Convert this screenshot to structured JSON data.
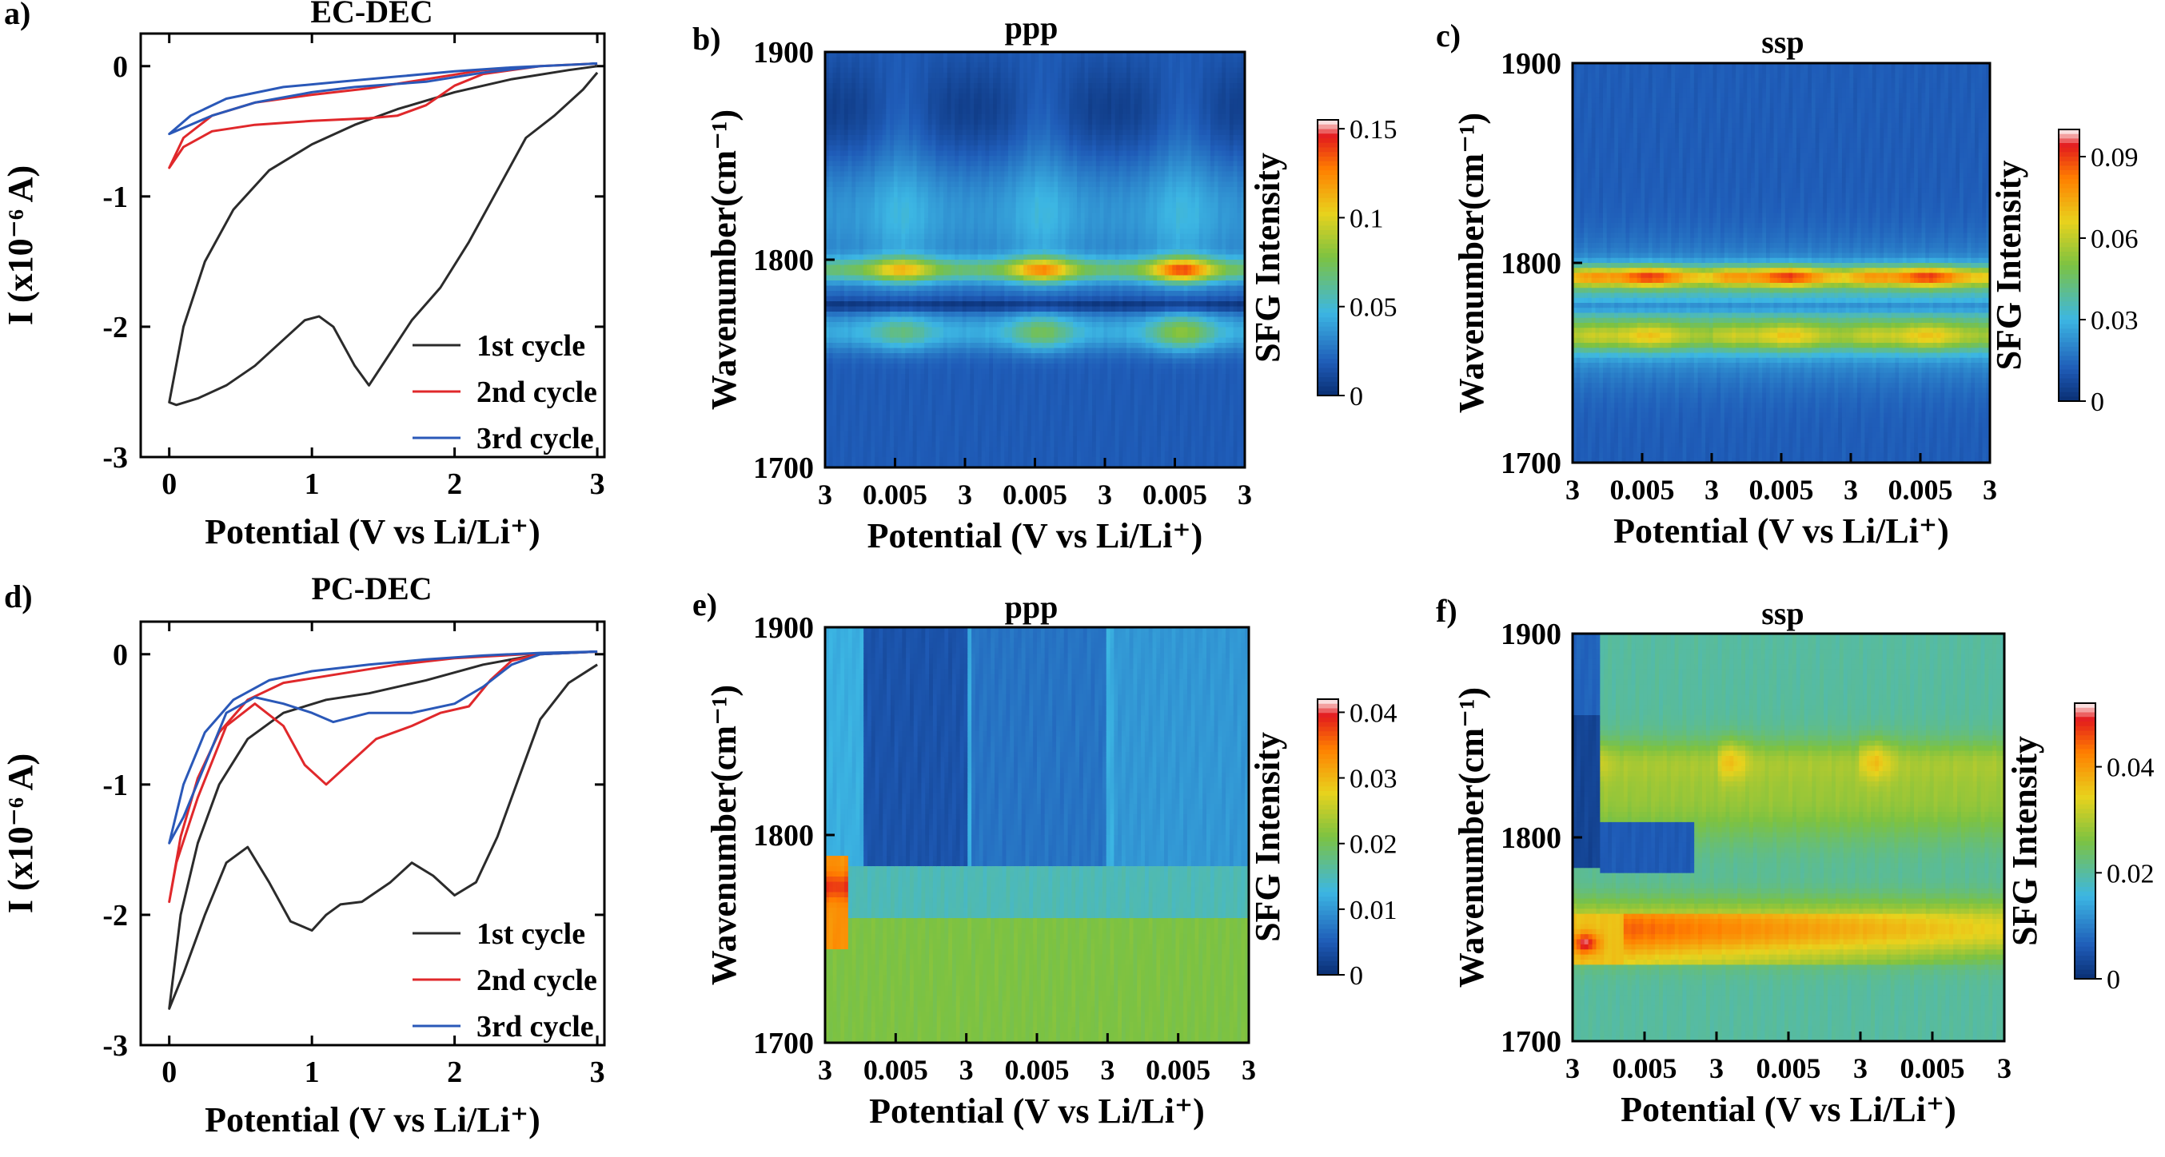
{
  "colors": {
    "cycle1": "#2b2b2b",
    "cycle2": "#e0282b",
    "cycle3": "#2a58b8",
    "colormap": [
      "#ffffff",
      "#e31a1c",
      "#ff7f00",
      "#e8d21d",
      "#7cc242",
      "#3cb6e3",
      "#1f5cb8",
      "#0a2f73"
    ]
  },
  "common": {
    "cv_ylabel": "I (x10⁻⁶ A)",
    "xlabel": "Potential (V vs Li/Li⁺)",
    "wn_ylabel": "Wavenumber(cm⁻¹)",
    "cbar_label": "SFG Intensity"
  },
  "chart_data": [
    {
      "id": "a",
      "panel_label": "a)",
      "type": "line",
      "title": "EC-DEC",
      "xlabel": "Potential (V vs Li/Li⁺)",
      "ylabel": "I (x10⁻⁶ A)",
      "xlim": [
        -0.2,
        3.05
      ],
      "ylim": [
        -3,
        0.25
      ],
      "xticks": [
        0,
        1,
        2,
        3
      ],
      "yticks": [
        0,
        -1,
        -2,
        -3
      ],
      "legend_position": "bottom-right",
      "series": [
        {
          "name": "1st cycle",
          "reduction": [
            [
              3,
              -0.05
            ],
            [
              2.9,
              -0.18
            ],
            [
              2.7,
              -0.38
            ],
            [
              2.5,
              -0.55
            ],
            [
              2.3,
              -0.95
            ],
            [
              2.1,
              -1.35
            ],
            [
              1.9,
              -1.7
            ],
            [
              1.7,
              -1.95
            ],
            [
              1.55,
              -2.2
            ],
            [
              1.4,
              -2.45
            ],
            [
              1.3,
              -2.3
            ],
            [
              1.15,
              -2.0
            ],
            [
              1.05,
              -1.92
            ],
            [
              0.95,
              -1.95
            ],
            [
              0.8,
              -2.1
            ],
            [
              0.6,
              -2.3
            ],
            [
              0.4,
              -2.45
            ],
            [
              0.2,
              -2.55
            ],
            [
              0.05,
              -2.6
            ],
            [
              0.0,
              -2.58
            ]
          ],
          "oxidation": [
            [
              0.0,
              -2.58
            ],
            [
              0.1,
              -2.0
            ],
            [
              0.25,
              -1.5
            ],
            [
              0.45,
              -1.1
            ],
            [
              0.7,
              -0.8
            ],
            [
              1.0,
              -0.6
            ],
            [
              1.3,
              -0.45
            ],
            [
              1.6,
              -0.33
            ],
            [
              2.0,
              -0.2
            ],
            [
              2.4,
              -0.1
            ],
            [
              2.8,
              -0.03
            ],
            [
              3,
              0.0
            ]
          ]
        },
        {
          "name": "2nd cycle",
          "reduction": [
            [
              3,
              0.02
            ],
            [
              2.6,
              0.0
            ],
            [
              2.2,
              -0.06
            ],
            [
              2.0,
              -0.15
            ],
            [
              1.8,
              -0.3
            ],
            [
              1.6,
              -0.38
            ],
            [
              1.4,
              -0.4
            ],
            [
              1.0,
              -0.42
            ],
            [
              0.6,
              -0.45
            ],
            [
              0.3,
              -0.5
            ],
            [
              0.1,
              -0.62
            ],
            [
              0.0,
              -0.78
            ]
          ],
          "oxidation": [
            [
              0.0,
              -0.78
            ],
            [
              0.1,
              -0.55
            ],
            [
              0.3,
              -0.38
            ],
            [
              0.6,
              -0.28
            ],
            [
              1.0,
              -0.22
            ],
            [
              1.4,
              -0.17
            ],
            [
              1.8,
              -0.1
            ],
            [
              2.2,
              -0.03
            ],
            [
              2.6,
              0.0
            ],
            [
              3,
              0.02
            ]
          ]
        },
        {
          "name": "3rd cycle",
          "reduction": [
            [
              3,
              0.02
            ],
            [
              2.6,
              0.0
            ],
            [
              2.2,
              -0.05
            ],
            [
              1.8,
              -0.12
            ],
            [
              1.3,
              -0.16
            ],
            [
              1.0,
              -0.2
            ],
            [
              0.6,
              -0.28
            ],
            [
              0.3,
              -0.38
            ],
            [
              0.0,
              -0.52
            ]
          ],
          "oxidation": [
            [
              0.0,
              -0.52
            ],
            [
              0.15,
              -0.38
            ],
            [
              0.4,
              -0.25
            ],
            [
              0.8,
              -0.16
            ],
            [
              1.2,
              -0.12
            ],
            [
              1.6,
              -0.08
            ],
            [
              2.0,
              -0.04
            ],
            [
              2.4,
              -0.01
            ],
            [
              3,
              0.02
            ]
          ]
        }
      ]
    },
    {
      "id": "b",
      "panel_label": "b)",
      "type": "heatmap",
      "title": "ppp",
      "xlabel": "Potential (V vs Li/Li⁺)",
      "ylabel": "Wavenumber(cm⁻¹)",
      "xticks": [
        "3",
        "0.005",
        "3",
        "0.005",
        "3",
        "0.005",
        "3"
      ],
      "ylim": [
        1700,
        1900
      ],
      "yticks": [
        1700,
        1800,
        1900
      ],
      "colorbar": {
        "label": "SFG Intensity",
        "min": 0,
        "max": 0.155,
        "ticks": [
          "0",
          "0.05",
          "0.1",
          "0.15"
        ],
        "tick_values": [
          0,
          0.05,
          0.1,
          0.15
        ]
      },
      "bands": [
        {
          "center": 1795,
          "width": 7,
          "amp": 0.095,
          "modulation": "strong_at_0.005V"
        },
        {
          "center": 1765,
          "width": 9,
          "amp": 0.055,
          "modulation": "strong_at_0.005V"
        },
        {
          "center": 1778,
          "depth": 0.02,
          "type": "dip"
        },
        {
          "center": 1820,
          "width": 28,
          "amp": 0.03
        }
      ],
      "background": 0.018
    },
    {
      "id": "c",
      "panel_label": "c)",
      "type": "heatmap",
      "title": "ssp",
      "xlabel": "Potential (V vs Li/Li⁺)",
      "ylabel": "Wavenumber(cm⁻¹)",
      "xticks": [
        "3",
        "0.005",
        "3",
        "0.005",
        "3",
        "0.005",
        "3"
      ],
      "ylim": [
        1700,
        1900
      ],
      "yticks": [
        1700,
        1800,
        1900
      ],
      "colorbar": {
        "label": "SFG Intensity",
        "min": 0,
        "max": 0.1,
        "ticks": [
          "0",
          "0.03",
          "0.06",
          "0.09"
        ],
        "tick_values": [
          0,
          0.03,
          0.06,
          0.09
        ]
      },
      "bands": [
        {
          "center": 1793,
          "width": 6,
          "amp": 0.075
        },
        {
          "center": 1763,
          "width": 8,
          "amp": 0.045
        },
        {
          "center": 1778,
          "depth": 0.015,
          "type": "dip"
        }
      ],
      "background": 0.012
    },
    {
      "id": "d",
      "panel_label": "d)",
      "type": "line",
      "title": "PC-DEC",
      "xlabel": "Potential (V vs Li/Li⁺)",
      "ylabel": "I (x10⁻⁶ A)",
      "xlim": [
        -0.2,
        3.05
      ],
      "ylim": [
        -3,
        0.25
      ],
      "xticks": [
        0,
        1,
        2,
        3
      ],
      "yticks": [
        0,
        -1,
        -2,
        -3
      ],
      "legend_position": "bottom-right",
      "series": [
        {
          "name": "1st cycle",
          "reduction": [
            [
              3,
              -0.08
            ],
            [
              2.8,
              -0.22
            ],
            [
              2.6,
              -0.5
            ],
            [
              2.45,
              -0.95
            ],
            [
              2.3,
              -1.4
            ],
            [
              2.15,
              -1.75
            ],
            [
              2.0,
              -1.85
            ],
            [
              1.85,
              -1.7
            ],
            [
              1.7,
              -1.6
            ],
            [
              1.55,
              -1.75
            ],
            [
              1.35,
              -1.9
            ],
            [
              1.2,
              -1.92
            ],
            [
              1.1,
              -2.0
            ],
            [
              1.0,
              -2.12
            ],
            [
              0.85,
              -2.05
            ],
            [
              0.7,
              -1.75
            ],
            [
              0.55,
              -1.48
            ],
            [
              0.4,
              -1.6
            ],
            [
              0.25,
              -2.0
            ],
            [
              0.1,
              -2.45
            ],
            [
              0.0,
              -2.72
            ]
          ],
          "oxidation": [
            [
              0.0,
              -2.72
            ],
            [
              0.08,
              -2.0
            ],
            [
              0.2,
              -1.45
            ],
            [
              0.35,
              -1.0
            ],
            [
              0.55,
              -0.65
            ],
            [
              0.8,
              -0.45
            ],
            [
              1.1,
              -0.35
            ],
            [
              1.4,
              -0.3
            ],
            [
              1.8,
              -0.2
            ],
            [
              2.2,
              -0.08
            ],
            [
              2.6,
              0.0
            ],
            [
              3,
              0.02
            ]
          ]
        },
        {
          "name": "2nd cycle",
          "reduction": [
            [
              3,
              0.02
            ],
            [
              2.6,
              0.0
            ],
            [
              2.4,
              -0.05
            ],
            [
              2.25,
              -0.2
            ],
            [
              2.1,
              -0.4
            ],
            [
              1.9,
              -0.45
            ],
            [
              1.7,
              -0.55
            ],
            [
              1.45,
              -0.65
            ],
            [
              1.25,
              -0.85
            ],
            [
              1.1,
              -1.0
            ],
            [
              0.95,
              -0.85
            ],
            [
              0.8,
              -0.55
            ],
            [
              0.6,
              -0.38
            ],
            [
              0.4,
              -0.55
            ],
            [
              0.2,
              -1.1
            ],
            [
              0.05,
              -1.6
            ],
            [
              0.0,
              -1.9
            ]
          ],
          "oxidation": [
            [
              0.0,
              -1.9
            ],
            [
              0.08,
              -1.4
            ],
            [
              0.2,
              -0.95
            ],
            [
              0.35,
              -0.6
            ],
            [
              0.55,
              -0.35
            ],
            [
              0.8,
              -0.22
            ],
            [
              1.2,
              -0.15
            ],
            [
              1.6,
              -0.08
            ],
            [
              2.0,
              -0.03
            ],
            [
              2.5,
              0.0
            ],
            [
              3,
              0.02
            ]
          ]
        },
        {
          "name": "3rd cycle",
          "reduction": [
            [
              3,
              0.02
            ],
            [
              2.6,
              0.0
            ],
            [
              2.4,
              -0.08
            ],
            [
              2.2,
              -0.25
            ],
            [
              2.0,
              -0.38
            ],
            [
              1.7,
              -0.45
            ],
            [
              1.4,
              -0.45
            ],
            [
              1.15,
              -0.52
            ],
            [
              1.0,
              -0.45
            ],
            [
              0.8,
              -0.38
            ],
            [
              0.6,
              -0.33
            ],
            [
              0.4,
              -0.45
            ],
            [
              0.25,
              -0.85
            ],
            [
              0.1,
              -1.25
            ],
            [
              0.0,
              -1.45
            ]
          ],
          "oxidation": [
            [
              0.0,
              -1.45
            ],
            [
              0.1,
              -1.0
            ],
            [
              0.25,
              -0.6
            ],
            [
              0.45,
              -0.35
            ],
            [
              0.7,
              -0.2
            ],
            [
              1.0,
              -0.13
            ],
            [
              1.4,
              -0.08
            ],
            [
              1.8,
              -0.04
            ],
            [
              2.2,
              -0.01
            ],
            [
              2.6,
              0.01
            ],
            [
              3,
              0.02
            ]
          ]
        }
      ]
    },
    {
      "id": "e",
      "panel_label": "e)",
      "type": "heatmap",
      "title": "ppp",
      "xlabel": "Potential (V vs Li/Li⁺)",
      "ylabel": "Wavenumber(cm⁻¹)",
      "xticks": [
        "3",
        "0.005",
        "3",
        "0.005",
        "3",
        "0.005",
        "3"
      ],
      "ylim": [
        1700,
        1900
      ],
      "yticks": [
        1700,
        1800,
        1900
      ],
      "colorbar": {
        "label": "SFG Intensity",
        "min": 0,
        "max": 0.042,
        "ticks": [
          "0",
          "0.01",
          "0.02",
          "0.03",
          "0.04"
        ],
        "tick_values": [
          0,
          0.01,
          0.02,
          0.03,
          0.04
        ]
      },
      "bands": [
        {
          "center": 1730,
          "type": "broad_low",
          "amp": 0.021
        },
        {
          "center": 1820,
          "type": "dark_upper",
          "amp": 0.004
        },
        {
          "center": 1770,
          "x_position": "first_sweep_start",
          "amp": 0.035
        }
      ],
      "background": 0.009
    },
    {
      "id": "f",
      "panel_label": "f)",
      "type": "heatmap",
      "title": "ssp",
      "xlabel": "Potential (V vs Li/Li⁺)",
      "ylabel": "Wavenumber(cm⁻¹)",
      "xticks": [
        "3",
        "0.005",
        "3",
        "0.005",
        "3",
        "0.005",
        "3"
      ],
      "ylim": [
        1700,
        1900
      ],
      "yticks": [
        1700,
        1800,
        1900
      ],
      "colorbar": {
        "label": "SFG Intensity",
        "min": 0,
        "max": 0.052,
        "ticks": [
          "0",
          "0.02",
          "0.04"
        ],
        "tick_values": [
          0,
          0.02,
          0.04
        ]
      },
      "bands": [
        {
          "center": 1748,
          "width": 9,
          "amp": 0.042
        },
        {
          "center": 1838,
          "width": 10,
          "amp": 0.03
        },
        {
          "center": 1775,
          "width": 8,
          "amp": 0.03
        },
        {
          "center": 1850,
          "type": "dark_upper_left",
          "amp": 0.002
        }
      ],
      "background": 0.02
    }
  ]
}
